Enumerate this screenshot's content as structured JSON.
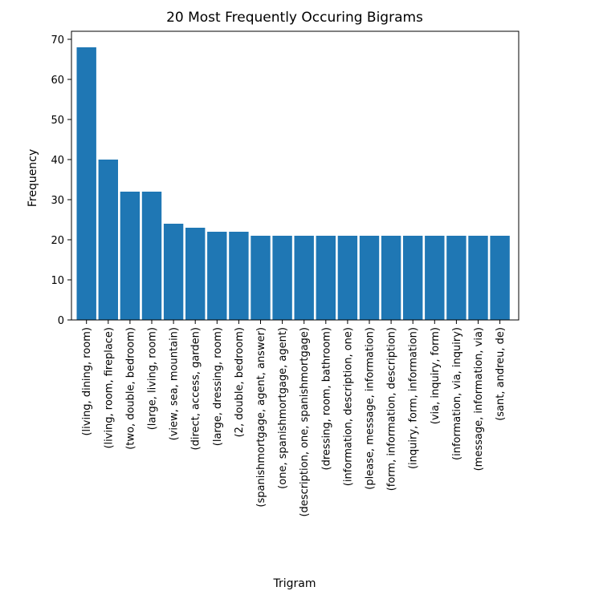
{
  "chart_data": {
    "type": "bar",
    "title": "20 Most Frequently Occuring Bigrams",
    "xlabel": "Trigram",
    "ylabel": "Frequency",
    "ylim": [
      0,
      72
    ],
    "yticks": [
      0,
      10,
      20,
      30,
      40,
      50,
      60,
      70
    ],
    "grid": false,
    "bar_color": "#1f77b4",
    "categories": [
      "(living, dining, room)",
      "(living, room, fireplace)",
      "(two, double, bedroom)",
      "(large, living, room)",
      "(view, sea, mountain)",
      "(direct, access, garden)",
      "(large, dressing, room)",
      "(2, double, bedroom)",
      "(spanishmortgage, agent, answer)",
      "(one, spanishmortgage, agent)",
      "(description, one, spanishmortgage)",
      "(dressing, room, bathroom)",
      "(information, description, one)",
      "(please, message, information)",
      "(form, information, description)",
      "(inquiry, form, information)",
      "(via, inquiry, form)",
      "(information, via, inquiry)",
      "(message, information, via)",
      "(sant, andreu, de)"
    ],
    "values": [
      68,
      40,
      32,
      32,
      24,
      23,
      22,
      22,
      21,
      21,
      21,
      21,
      21,
      21,
      21,
      21,
      21,
      21,
      21,
      21
    ]
  }
}
